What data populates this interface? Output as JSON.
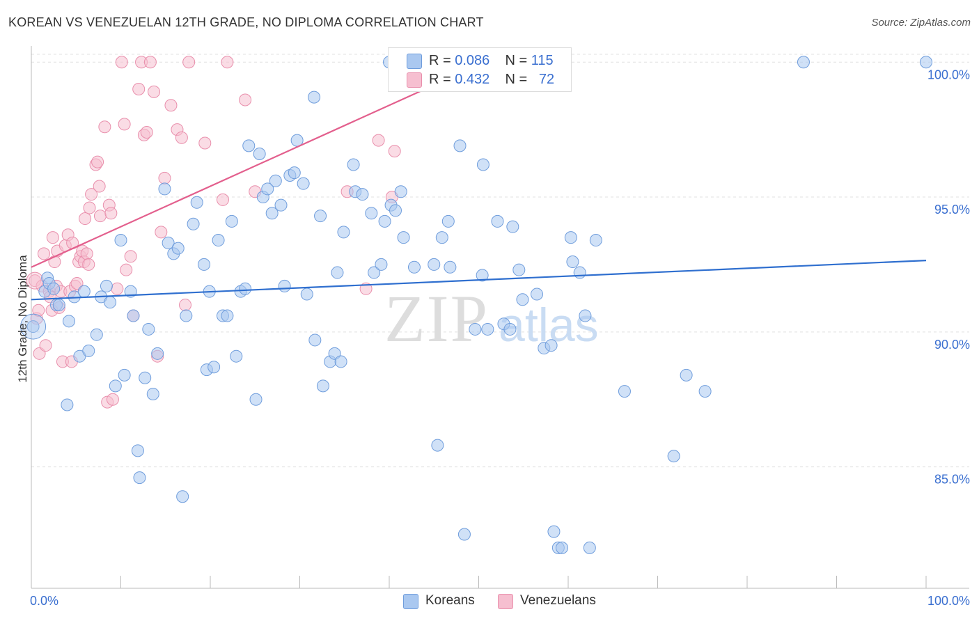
{
  "title": "KOREAN VS VENEZUELAN 12TH GRADE, NO DIPLOMA CORRELATION CHART",
  "source": "Source: ZipAtlas.com",
  "watermark": {
    "zip": "ZIP",
    "atlas": "atlas"
  },
  "legend": {
    "koreans": {
      "r_label": "R =",
      "r_value": "0.086",
      "n_label": "N =",
      "n_value": "115"
    },
    "venezuelans": {
      "r_label": "R =",
      "r_value": "0.432",
      "n_label": "N =",
      "n_value": "72"
    }
  },
  "colors": {
    "korean_fill": "#aac8f0",
    "korean_stroke": "#6f9ddc",
    "korean_line": "#2f6fcf",
    "venez_fill": "#f6bfd0",
    "venez_stroke": "#e98fac",
    "venez_line": "#e35f8d",
    "axis_label": "#3a6fd0",
    "grid": "#e0e0e0"
  },
  "chart_data": {
    "type": "scatter",
    "title": "KOREAN VS VENEZUELAN 12TH GRADE, NO DIPLOMA CORRELATION CHART",
    "xlabel": "",
    "ylabel": "12th Grade, No Diploma",
    "xlim": [
      0,
      100
    ],
    "ylim": [
      80.5,
      100.6
    ],
    "x_tick_labels": [
      "0.0%",
      "100.0%"
    ],
    "y_ticks": [
      85,
      90,
      95,
      100
    ],
    "y_tick_labels": [
      "85.0%",
      "90.0%",
      "95.0%",
      "100.0%"
    ],
    "series": [
      {
        "name": "Koreans",
        "trend": {
          "x": [
            0,
            100
          ],
          "y": [
            91.2,
            92.65
          ]
        },
        "points": [
          [
            0.2,
            90.2
          ],
          [
            1.5,
            91.5
          ],
          [
            1.8,
            92.0
          ],
          [
            2.0,
            91.8
          ],
          [
            2.5,
            91.6
          ],
          [
            2.8,
            91.0
          ],
          [
            3.1,
            91.0
          ],
          [
            4.2,
            90.4
          ],
          [
            4.0,
            87.3
          ],
          [
            4.8,
            91.3
          ],
          [
            5.4,
            89.1
          ],
          [
            5.9,
            91.5
          ],
          [
            6.4,
            89.3
          ],
          [
            7.3,
            89.9
          ],
          [
            7.8,
            91.3
          ],
          [
            8.4,
            91.7
          ],
          [
            8.8,
            91.1
          ],
          [
            9.4,
            88.0
          ],
          [
            10.0,
            93.4
          ],
          [
            10.4,
            88.4
          ],
          [
            11.1,
            91.5
          ],
          [
            11.4,
            90.6
          ],
          [
            11.9,
            85.6
          ],
          [
            12.1,
            84.6
          ],
          [
            12.7,
            88.3
          ],
          [
            13.1,
            90.1
          ],
          [
            13.6,
            87.7
          ],
          [
            14.1,
            89.2
          ],
          [
            14.9,
            95.3
          ],
          [
            15.3,
            93.3
          ],
          [
            15.9,
            92.9
          ],
          [
            16.4,
            93.1
          ],
          [
            16.9,
            83.9
          ],
          [
            17.3,
            90.6
          ],
          [
            18.1,
            94.0
          ],
          [
            18.5,
            94.8
          ],
          [
            19.3,
            92.5
          ],
          [
            19.6,
            88.6
          ],
          [
            19.9,
            91.5
          ],
          [
            20.4,
            88.7
          ],
          [
            20.9,
            93.4
          ],
          [
            21.4,
            90.6
          ],
          [
            21.9,
            90.6
          ],
          [
            22.4,
            94.1
          ],
          [
            22.9,
            89.1
          ],
          [
            23.4,
            91.5
          ],
          [
            23.9,
            91.6
          ],
          [
            24.3,
            96.9
          ],
          [
            25.1,
            87.5
          ],
          [
            25.5,
            96.6
          ],
          [
            25.9,
            95.0
          ],
          [
            26.4,
            95.3
          ],
          [
            26.9,
            94.4
          ],
          [
            27.3,
            95.6
          ],
          [
            27.9,
            94.7
          ],
          [
            28.3,
            91.7
          ],
          [
            28.9,
            95.8
          ],
          [
            29.4,
            95.9
          ],
          [
            29.7,
            97.1
          ],
          [
            30.4,
            95.5
          ],
          [
            30.8,
            91.4
          ],
          [
            31.7,
            89.7
          ],
          [
            32.3,
            94.3
          ],
          [
            32.6,
            88.0
          ],
          [
            33.4,
            88.9
          ],
          [
            33.9,
            89.2
          ],
          [
            34.6,
            88.9
          ],
          [
            34.2,
            92.2
          ],
          [
            34.9,
            93.7
          ],
          [
            36.0,
            96.2
          ],
          [
            36.2,
            95.2
          ],
          [
            37.0,
            95.1
          ],
          [
            38.0,
            94.4
          ],
          [
            38.3,
            92.2
          ],
          [
            39.1,
            92.5
          ],
          [
            39.5,
            94.1
          ],
          [
            40.2,
            94.7
          ],
          [
            40.7,
            94.5
          ],
          [
            41.3,
            95.2
          ],
          [
            41.6,
            93.5
          ],
          [
            42.8,
            92.4
          ],
          [
            45.0,
            92.5
          ],
          [
            45.4,
            85.8
          ],
          [
            45.9,
            93.5
          ],
          [
            46.6,
            94.1
          ],
          [
            46.8,
            92.4
          ],
          [
            47.9,
            96.9
          ],
          [
            48.4,
            82.5
          ],
          [
            50.4,
            92.1
          ],
          [
            50.5,
            96.2
          ],
          [
            51.0,
            90.1
          ],
          [
            52.1,
            94.1
          ],
          [
            52.8,
            90.3
          ],
          [
            53.8,
            93.9
          ],
          [
            54.5,
            92.3
          ],
          [
            54.9,
            91.2
          ],
          [
            56.5,
            91.4
          ],
          [
            57.3,
            89.4
          ],
          [
            58.1,
            89.5
          ],
          [
            58.4,
            82.6
          ],
          [
            58.9,
            82.0
          ],
          [
            59.3,
            82.0
          ],
          [
            60.3,
            93.5
          ],
          [
            60.5,
            92.6
          ],
          [
            61.3,
            92.2
          ],
          [
            61.9,
            90.6
          ],
          [
            62.4,
            82.0
          ],
          [
            63.1,
            93.4
          ],
          [
            66.3,
            87.8
          ],
          [
            71.8,
            85.4
          ],
          [
            73.2,
            88.4
          ],
          [
            75.3,
            87.8
          ],
          [
            86.3,
            100.0
          ],
          [
            100.0,
            100.0
          ],
          [
            41.0,
            100.0
          ],
          [
            40.0,
            100.0
          ],
          [
            53.5,
            90.1
          ],
          [
            49.6,
            90.1
          ],
          [
            31.6,
            98.7
          ]
        ]
      },
      {
        "name": "Venezuelans",
        "trend": {
          "x": [
            0,
            50
          ],
          "y": [
            92.4,
            99.9
          ]
        },
        "points": [
          [
            0.4,
            91.9
          ],
          [
            0.6,
            90.5
          ],
          [
            0.8,
            90.8
          ],
          [
            0.9,
            89.2
          ],
          [
            1.2,
            91.7
          ],
          [
            1.4,
            92.9
          ],
          [
            1.6,
            89.5
          ],
          [
            2.0,
            91.5
          ],
          [
            2.1,
            91.3
          ],
          [
            2.3,
            90.8
          ],
          [
            2.4,
            93.5
          ],
          [
            2.6,
            92.6
          ],
          [
            2.8,
            91.7
          ],
          [
            2.9,
            93.0
          ],
          [
            3.1,
            90.9
          ],
          [
            3.3,
            91.5
          ],
          [
            3.5,
            88.9
          ],
          [
            3.8,
            93.2
          ],
          [
            4.1,
            93.6
          ],
          [
            4.3,
            91.5
          ],
          [
            4.5,
            88.9
          ],
          [
            4.6,
            93.3
          ],
          [
            4.9,
            91.7
          ],
          [
            5.1,
            91.8
          ],
          [
            5.3,
            92.6
          ],
          [
            5.5,
            92.8
          ],
          [
            5.7,
            93.0
          ],
          [
            5.9,
            92.6
          ],
          [
            6.0,
            94.2
          ],
          [
            6.2,
            92.9
          ],
          [
            6.4,
            92.5
          ],
          [
            6.5,
            94.6
          ],
          [
            6.7,
            95.1
          ],
          [
            7.2,
            96.2
          ],
          [
            7.4,
            96.3
          ],
          [
            7.7,
            94.3
          ],
          [
            7.6,
            95.4
          ],
          [
            8.2,
            97.6
          ],
          [
            8.5,
            87.4
          ],
          [
            8.7,
            94.7
          ],
          [
            8.9,
            94.4
          ],
          [
            9.1,
            87.5
          ],
          [
            9.6,
            91.6
          ],
          [
            10.1,
            100.0
          ],
          [
            10.4,
            97.7
          ],
          [
            10.6,
            92.3
          ],
          [
            11.1,
            92.8
          ],
          [
            11.4,
            90.6
          ],
          [
            12.0,
            99.0
          ],
          [
            12.3,
            100.0
          ],
          [
            12.6,
            97.3
          ],
          [
            12.9,
            97.4
          ],
          [
            13.3,
            100.0
          ],
          [
            13.7,
            98.9
          ],
          [
            14.1,
            89.1
          ],
          [
            14.5,
            93.7
          ],
          [
            14.9,
            95.7
          ],
          [
            15.6,
            98.4
          ],
          [
            16.3,
            97.5
          ],
          [
            16.8,
            97.2
          ],
          [
            17.2,
            91.0
          ],
          [
            17.6,
            100.0
          ],
          [
            19.4,
            97.0
          ],
          [
            21.4,
            94.9
          ],
          [
            21.9,
            100.0
          ],
          [
            23.9,
            98.6
          ],
          [
            25.0,
            95.2
          ],
          [
            35.3,
            95.2
          ],
          [
            37.4,
            91.6
          ],
          [
            38.8,
            97.1
          ],
          [
            40.3,
            95.0
          ],
          [
            40.6,
            96.7
          ]
        ]
      }
    ]
  },
  "bottom_legend": {
    "koreans": "Koreans",
    "venezuelans": "Venezuelans"
  }
}
